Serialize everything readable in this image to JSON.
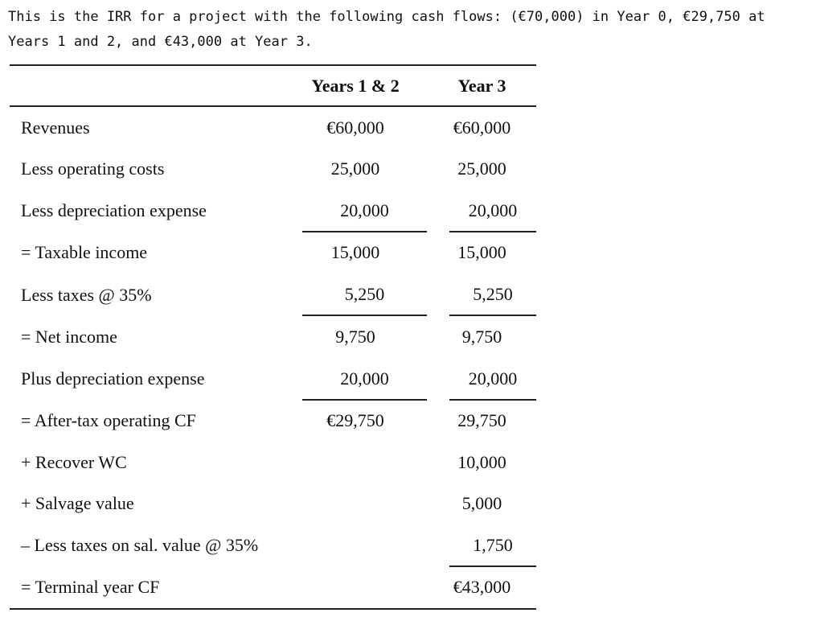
{
  "intro_text": "This is the IRR for a project with the following cash flows: (€70,000) in Year 0, €29,750 at Years 1 and 2, and €43,000 at Year 3.",
  "table": {
    "headers": {
      "label": "",
      "col1": "Years 1 & 2",
      "col2": "Year 3"
    },
    "rows": [
      {
        "label": "Revenues",
        "col1": "€60,000",
        "col2": "€60,000"
      },
      {
        "label": "Less operating costs",
        "col1": "25,000",
        "col2": "25,000"
      },
      {
        "label": "Less depreciation expense",
        "col1": "20,000",
        "col2": "20,000"
      },
      {
        "label": "= Taxable income",
        "col1": "15,000",
        "col2": "15,000"
      },
      {
        "label": "Less taxes @ 35%",
        "col1": "5,250",
        "col2": "5,250"
      },
      {
        "label": "= Net income",
        "col1": "9,750",
        "col2": "9,750"
      },
      {
        "label": "Plus depreciation expense",
        "col1": "20,000",
        "col2": "20,000"
      },
      {
        "label": "= After-tax operating CF",
        "col1": "€29,750",
        "col2": "29,750"
      },
      {
        "label": "+ Recover WC",
        "col1": "",
        "col2": "10,000"
      },
      {
        "label": "+ Salvage value",
        "col1": "",
        "col2": "5,000"
      },
      {
        "label": "– Less taxes on sal. value @ 35%",
        "col1": "",
        "col2": "1,750"
      },
      {
        "label": "= Terminal year CF",
        "col1": "",
        "col2": "€43,000"
      }
    ]
  }
}
